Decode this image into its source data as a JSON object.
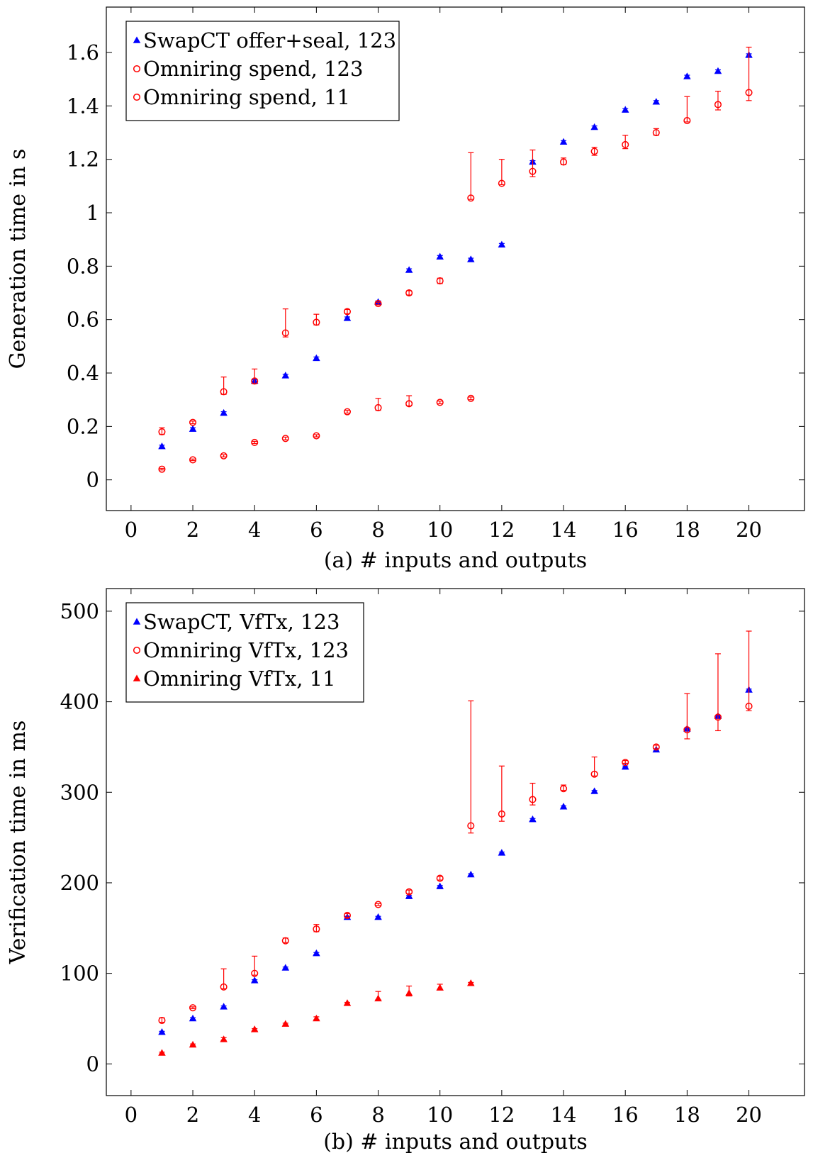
{
  "chart_data": [
    {
      "type": "scatter",
      "xlabel": "(a) # inputs and outputs",
      "ylabel": "Generation time in s",
      "xlim": [
        -0.8,
        21.8
      ],
      "ylim": [
        -0.115,
        1.77
      ],
      "xticks": [
        0,
        2,
        4,
        6,
        8,
        10,
        12,
        14,
        16,
        18,
        20
      ],
      "yticks": [
        0,
        0.2,
        0.4,
        0.6,
        0.8,
        1,
        1.2,
        1.4,
        1.6
      ],
      "ytick_labels": [
        "0",
        "0.2",
        "0.4",
        "0.6",
        "0.8",
        "1",
        "1.2",
        "1.4",
        "1.6"
      ],
      "grid": false,
      "legend_position": "top-left",
      "series": [
        {
          "name": "SwapCT offer+seal, 123",
          "color": "#0000ff",
          "marker": "triangle",
          "x": [
            1,
            2,
            3,
            4,
            5,
            6,
            7,
            8,
            9,
            10,
            11,
            12,
            13,
            14,
            15,
            16,
            17,
            18,
            19,
            20
          ],
          "y": [
            0.125,
            0.19,
            0.25,
            0.37,
            0.39,
            0.455,
            0.605,
            0.665,
            0.785,
            0.835,
            0.825,
            0.88,
            1.19,
            1.265,
            1.32,
            1.385,
            1.415,
            1.51,
            1.53,
            1.59
          ],
          "err_low": [
            0.005,
            0.005,
            0.005,
            0.005,
            0.005,
            0.005,
            0.005,
            0.005,
            0.005,
            0.005,
            0.005,
            0.005,
            0.005,
            0.005,
            0.005,
            0.005,
            0.005,
            0.005,
            0.005,
            0.005
          ],
          "err_high": [
            0.005,
            0.005,
            0.005,
            0.005,
            0.005,
            0.005,
            0.005,
            0.005,
            0.005,
            0.005,
            0.005,
            0.005,
            0.005,
            0.005,
            0.005,
            0.005,
            0.005,
            0.005,
            0.005,
            0.005
          ]
        },
        {
          "name": "Omniring spend, 123",
          "color": "#ff0000",
          "marker": "circle",
          "x": [
            1,
            2,
            3,
            4,
            5,
            6,
            7,
            8,
            9,
            10,
            11,
            12,
            13,
            14,
            15,
            16,
            17,
            18,
            19,
            20
          ],
          "y": [
            0.18,
            0.215,
            0.33,
            0.37,
            0.55,
            0.59,
            0.63,
            0.66,
            0.7,
            0.745,
            1.055,
            1.11,
            1.155,
            1.19,
            1.23,
            1.255,
            1.3,
            1.345,
            1.405,
            1.45
          ],
          "err_low": [
            0.01,
            0.005,
            0.01,
            0.01,
            0.015,
            0.01,
            0.008,
            0.005,
            0.008,
            0.01,
            0.005,
            0.005,
            0.02,
            0.01,
            0.015,
            0.015,
            0.01,
            0.005,
            0.02,
            0.03
          ],
          "err_high": [
            0.015,
            0.005,
            0.055,
            0.045,
            0.09,
            0.03,
            0.008,
            0.005,
            0.008,
            0.01,
            0.17,
            0.09,
            0.08,
            0.015,
            0.015,
            0.035,
            0.015,
            0.09,
            0.05,
            0.17
          ]
        },
        {
          "name": "Omniring spend, 11",
          "color": "#ff0000",
          "marker": "circle",
          "x": [
            1,
            2,
            3,
            4,
            5,
            6,
            7,
            8,
            9,
            10,
            11
          ],
          "y": [
            0.04,
            0.075,
            0.09,
            0.14,
            0.155,
            0.165,
            0.255,
            0.27,
            0.285,
            0.29,
            0.305
          ],
          "err_low": [
            0.003,
            0.003,
            0.004,
            0.004,
            0.005,
            0.004,
            0.005,
            0.01,
            0.008,
            0.005,
            0.005
          ],
          "err_high": [
            0.003,
            0.003,
            0.004,
            0.004,
            0.005,
            0.004,
            0.005,
            0.035,
            0.03,
            0.005,
            0.005
          ]
        }
      ]
    },
    {
      "type": "scatter",
      "xlabel": "(b) # inputs and outputs",
      "ylabel": "Verification time in ms",
      "xlim": [
        -0.8,
        21.8
      ],
      "ylim": [
        -35,
        525
      ],
      "xticks": [
        0,
        2,
        4,
        6,
        8,
        10,
        12,
        14,
        16,
        18,
        20
      ],
      "yticks": [
        0,
        100,
        200,
        300,
        400,
        500
      ],
      "ytick_labels": [
        "0",
        "100",
        "200",
        "300",
        "400",
        "500"
      ],
      "grid": false,
      "legend_position": "top-left",
      "series": [
        {
          "name": "SwapCT, VfTx, 123",
          "color": "#0000ff",
          "marker": "triangle",
          "x": [
            1,
            2,
            3,
            4,
            5,
            6,
            7,
            8,
            9,
            10,
            11,
            12,
            13,
            14,
            15,
            16,
            17,
            18,
            19,
            20
          ],
          "y": [
            35,
            50,
            63,
            92,
            106,
            122,
            162,
            162,
            185,
            196,
            209,
            233,
            270,
            284,
            301,
            328,
            347,
            370,
            384,
            413
          ],
          "err_low": [
            1,
            1,
            1,
            1,
            1,
            1,
            1,
            1,
            1,
            1,
            1,
            1,
            1,
            1,
            1,
            1,
            1,
            1,
            1,
            1
          ],
          "err_high": [
            1,
            1,
            1,
            1,
            1,
            1,
            1,
            1,
            1,
            1,
            1,
            1,
            1,
            1,
            1,
            1,
            1,
            1,
            1,
            1
          ]
        },
        {
          "name": "Omniring VfTx, 123",
          "color": "#ff0000",
          "marker": "circle",
          "x": [
            1,
            2,
            3,
            4,
            5,
            6,
            7,
            8,
            9,
            10,
            11,
            12,
            13,
            14,
            15,
            16,
            17,
            18,
            19,
            20
          ],
          "y": [
            48,
            62,
            85,
            100,
            136,
            149,
            164,
            176,
            190,
            205,
            263,
            276,
            292,
            304,
            320,
            333,
            350,
            369,
            383,
            395
          ],
          "err_low": [
            2,
            1,
            2,
            2,
            2,
            3,
            2,
            1,
            2,
            2,
            8,
            8,
            6,
            2,
            2,
            1,
            2,
            10,
            15,
            5
          ],
          "err_high": [
            3,
            1,
            20,
            19,
            3,
            5,
            2,
            1,
            2,
            2,
            138,
            53,
            18,
            4,
            19,
            2,
            2,
            40,
            70,
            83
          ]
        },
        {
          "name": "Omniring VfTx, 11",
          "color": "#ff0000",
          "marker": "triangle",
          "x": [
            1,
            2,
            3,
            4,
            5,
            6,
            7,
            8,
            9,
            10,
            11
          ],
          "y": [
            12,
            21,
            27,
            38,
            44,
            50,
            67,
            72,
            78,
            84,
            89
          ],
          "err_low": [
            1,
            1,
            1,
            1,
            1,
            1,
            1,
            1,
            3,
            2,
            1
          ],
          "err_high": [
            1,
            1,
            2,
            1,
            1,
            2,
            1,
            8,
            8,
            4,
            1
          ]
        }
      ]
    }
  ]
}
